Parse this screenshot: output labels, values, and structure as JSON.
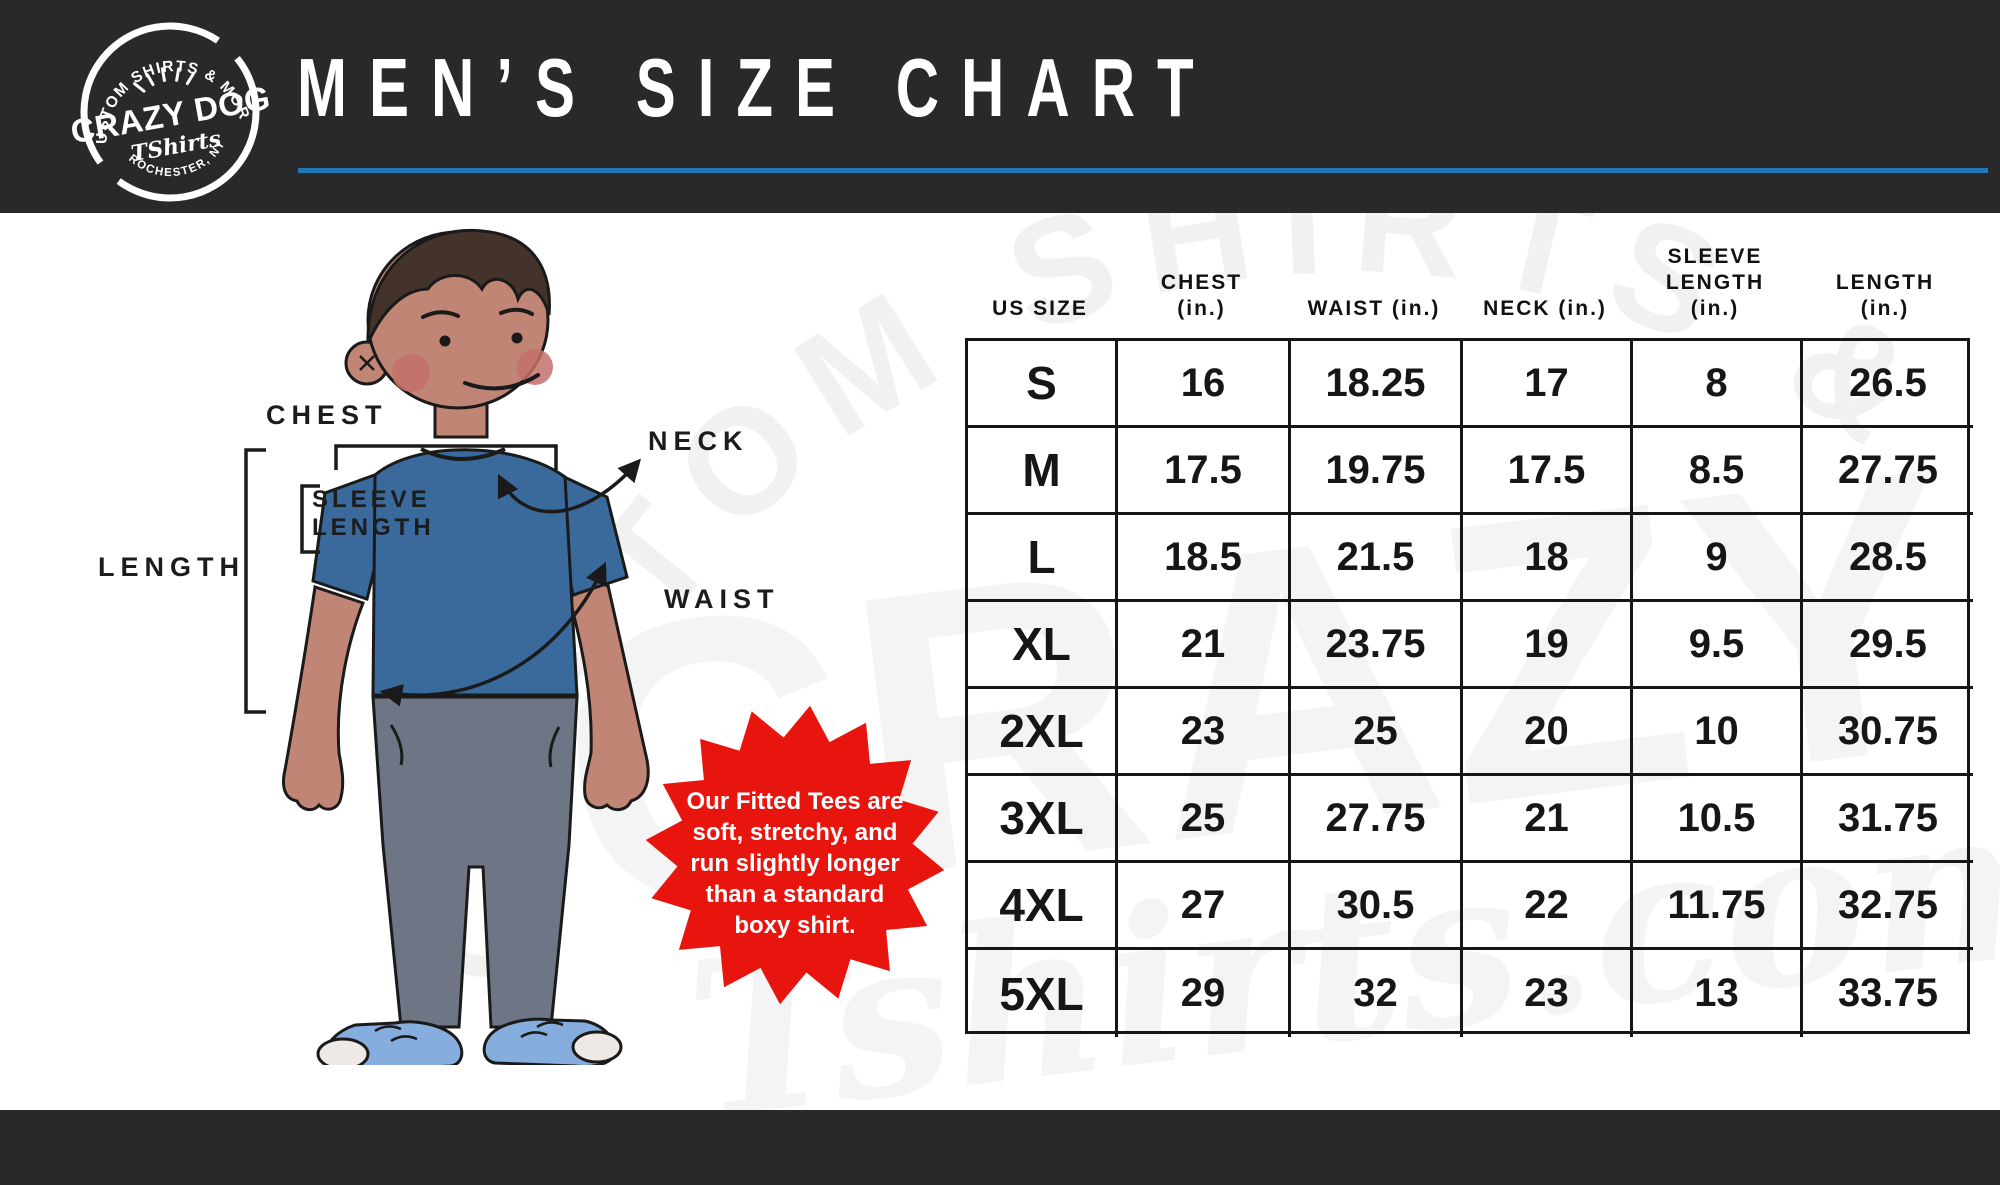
{
  "colors": {
    "bar_dark": "#2a2929",
    "accent_blue": "#2178b8",
    "badge_red": "#e8140e",
    "shirt_blue": "#3a699c"
  },
  "header": {
    "title": "MEN’S SIZE CHART",
    "logo": {
      "arc_top": "CUSTOM SHIRTS & MORE",
      "name": "CRAZY DOG",
      "script": "TShirts",
      "arc_bottom": "ROCHESTER, NY"
    }
  },
  "watermark": {
    "arc_text": "CUSTOM SHIRTS & MORE",
    "big_text": "CRAZY DOG",
    "script_text": "Tshirts.com"
  },
  "diagram": {
    "chest_label": "CHEST",
    "neck_label": "NECK",
    "sleeve_label_line1": "SLEEVE",
    "sleeve_label_line2": "LENGTH",
    "length_label": "LENGTH",
    "waist_label": "WAIST"
  },
  "badge": {
    "color": "#e8140e",
    "lines": [
      "Our Fitted Tees are",
      "soft, stretchy, and",
      "run slightly longer",
      "than a standard",
      "boxy shirt."
    ]
  },
  "table": {
    "columns": [
      [
        "US SIZE"
      ],
      [
        "CHEST",
        "(in.)"
      ],
      [
        "WAIST (in.)"
      ],
      [
        "NECK (in.)"
      ],
      [
        "SLEEVE",
        "LENGTH",
        "(in.)"
      ],
      [
        "LENGTH",
        "(in.)"
      ]
    ],
    "rows": [
      [
        "S",
        "16",
        "18.25",
        "17",
        "8",
        "26.5"
      ],
      [
        "M",
        "17.5",
        "19.75",
        "17.5",
        "8.5",
        "27.75"
      ],
      [
        "L",
        "18.5",
        "21.5",
        "18",
        "9",
        "28.5"
      ],
      [
        "XL",
        "21",
        "23.75",
        "19",
        "9.5",
        "29.5"
      ],
      [
        "2XL",
        "23",
        "25",
        "20",
        "10",
        "30.75"
      ],
      [
        "3XL",
        "25",
        "27.75",
        "21",
        "10.5",
        "31.75"
      ],
      [
        "4XL",
        "27",
        "30.5",
        "22",
        "11.75",
        "32.75"
      ],
      [
        "5XL",
        "29",
        "32",
        "23",
        "13",
        "33.75"
      ]
    ]
  }
}
